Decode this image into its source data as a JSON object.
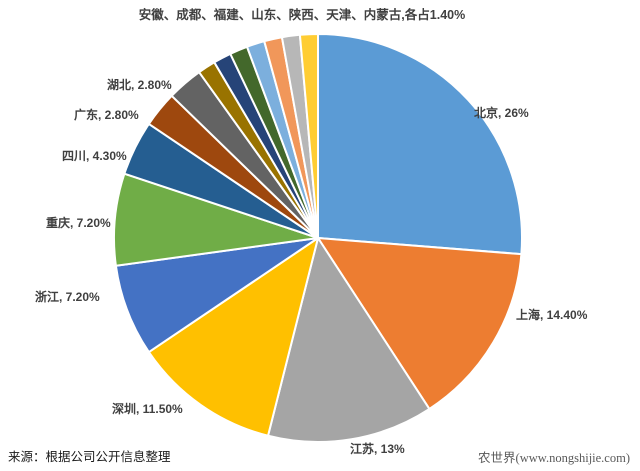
{
  "title": "安徽、成都、福建、山东、陕西、天津、内蒙古,各占1.40%",
  "source_note": "来源：根据公司公开信息整理",
  "watermark": "农世界(www.nongshijie.com)",
  "colors": {
    "background": "#ffffff",
    "label_text": "#404040",
    "slice_border": "#ffffff"
  },
  "chart_data": {
    "type": "pie",
    "title": "安徽、成都、福建、山东、陕西、天津、内蒙古,各占1.40%",
    "legend_position": "none",
    "start_angle_deg": 0,
    "direction": "clockwise",
    "labels_style": "outside, bold, '名称, 百分比' format",
    "slices": [
      {
        "label": "北京",
        "value": 26.0,
        "display": "北京, 26%",
        "color": "#5B9BD5"
      },
      {
        "label": "上海",
        "value": 14.4,
        "display": "上海, 14.40%",
        "color": "#ED7D31"
      },
      {
        "label": "江苏",
        "value": 13.0,
        "display": "江苏, 13%",
        "color": "#A5A5A5"
      },
      {
        "label": "深圳",
        "value": 11.5,
        "display": "深圳, 11.50%",
        "color": "#FFC000"
      },
      {
        "label": "浙江",
        "value": 7.2,
        "display": "浙江, 7.20%",
        "color": "#4472C4"
      },
      {
        "label": "重庆",
        "value": 7.2,
        "display": "重庆, 7.20%",
        "color": "#70AD47"
      },
      {
        "label": "四川",
        "value": 4.3,
        "display": "四川, 4.30%",
        "color": "#255E91"
      },
      {
        "label": "广东",
        "value": 2.8,
        "display": "广东, 2.80%",
        "color": "#9E480E"
      },
      {
        "label": "湖北",
        "value": 2.8,
        "display": "湖北, 2.80%",
        "color": "#636363"
      },
      {
        "label": "安徽",
        "value": 1.4,
        "display": null,
        "color": "#997300"
      },
      {
        "label": "成都",
        "value": 1.4,
        "display": null,
        "color": "#264478"
      },
      {
        "label": "福建",
        "value": 1.4,
        "display": null,
        "color": "#43682B"
      },
      {
        "label": "山东",
        "value": 1.4,
        "display": null,
        "color": "#7CAFDD"
      },
      {
        "label": "陕西",
        "value": 1.4,
        "display": null,
        "color": "#F1975A"
      },
      {
        "label": "天津",
        "value": 1.4,
        "display": null,
        "color": "#B7B7B7"
      },
      {
        "label": "内蒙古",
        "value": 1.4,
        "display": null,
        "color": "#FFCD33"
      }
    ]
  }
}
